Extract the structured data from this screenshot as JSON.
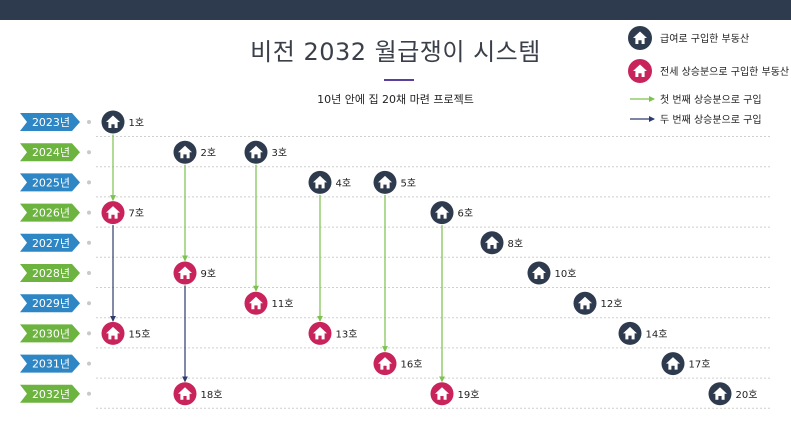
{
  "title": "비전 2032 월급쟁이 시스템",
  "subtitle": "10년 안에 집 20채 마련 프로젝트",
  "colors": {
    "navy": "#2e3b4e",
    "crimson": "#c8235a",
    "year_blue": "#2f86c4",
    "year_green": "#6db33f",
    "arrow_green": "#7cc24e",
    "arrow_navy": "#2e3b6e"
  },
  "legend": {
    "salary_purchase": "급여로 구입한 부동산",
    "deposit_purchase": "전세 상승분으로 구입한 부동산",
    "first_arrow": "첫 번째 상승분으로 구입",
    "second_arrow": "두 번째 상승분으로 구입"
  },
  "years": [
    {
      "label": "2023년",
      "color": "blue"
    },
    {
      "label": "2024년",
      "color": "green"
    },
    {
      "label": "2025년",
      "color": "blue"
    },
    {
      "label": "2026년",
      "color": "green"
    },
    {
      "label": "2027년",
      "color": "blue"
    },
    {
      "label": "2028년",
      "color": "green"
    },
    {
      "label": "2029년",
      "color": "blue"
    },
    {
      "label": "2030년",
      "color": "green"
    },
    {
      "label": "2031년",
      "color": "blue"
    },
    {
      "label": "2032년",
      "color": "green"
    }
  ],
  "houses": [
    {
      "id": 1,
      "label": "1호",
      "type": "salary"
    },
    {
      "id": 2,
      "label": "2호",
      "type": "salary"
    },
    {
      "id": 3,
      "label": "3호",
      "type": "salary"
    },
    {
      "id": 4,
      "label": "4호",
      "type": "salary"
    },
    {
      "id": 5,
      "label": "5호",
      "type": "salary"
    },
    {
      "id": 6,
      "label": "6호",
      "type": "salary"
    },
    {
      "id": 7,
      "label": "7호",
      "type": "deposit"
    },
    {
      "id": 8,
      "label": "8호",
      "type": "salary"
    },
    {
      "id": 9,
      "label": "9호",
      "type": "deposit"
    },
    {
      "id": 10,
      "label": "10호",
      "type": "salary"
    },
    {
      "id": 11,
      "label": "11호",
      "type": "deposit"
    },
    {
      "id": 12,
      "label": "12호",
      "type": "salary"
    },
    {
      "id": 13,
      "label": "13호",
      "type": "deposit"
    },
    {
      "id": 14,
      "label": "14호",
      "type": "salary"
    },
    {
      "id": 15,
      "label": "15호",
      "type": "deposit"
    },
    {
      "id": 16,
      "label": "16호",
      "type": "deposit"
    },
    {
      "id": 17,
      "label": "17호",
      "type": "salary"
    },
    {
      "id": 18,
      "label": "18호",
      "type": "deposit"
    },
    {
      "id": 19,
      "label": "19호",
      "type": "deposit"
    },
    {
      "id": 20,
      "label": "20호",
      "type": "salary"
    }
  ],
  "arrows": [
    {
      "from": 1,
      "to": 7,
      "kind": "first"
    },
    {
      "from": 2,
      "to": 9,
      "kind": "first"
    },
    {
      "from": 3,
      "to": 11,
      "kind": "first"
    },
    {
      "from": 4,
      "to": 13,
      "kind": "first"
    },
    {
      "from": 5,
      "to": 16,
      "kind": "first"
    },
    {
      "from": 6,
      "to": 19,
      "kind": "first"
    },
    {
      "from": 7,
      "to": 15,
      "kind": "second"
    },
    {
      "from": 9,
      "to": 18,
      "kind": "second"
    }
  ]
}
